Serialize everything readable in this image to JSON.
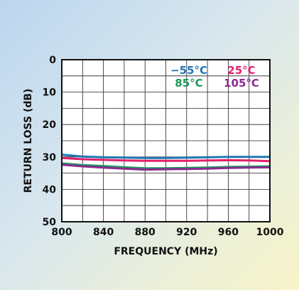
{
  "chart_data": {
    "type": "line",
    "title": "",
    "xlabel": "FREQUENCY (MHz)",
    "ylabel": "RETURN LOSS (dB)",
    "xlim": [
      800,
      1000
    ],
    "ylim": [
      0,
      50
    ],
    "y_inverted": true,
    "grid": true,
    "legend_placement": "top-right",
    "x_ticks": [
      "800",
      "840",
      "880",
      "920",
      "960",
      "1000"
    ],
    "y_ticks": [
      "0",
      "10",
      "20",
      "30",
      "40",
      "50"
    ],
    "x": [
      800,
      820,
      840,
      860,
      880,
      900,
      920,
      940,
      960,
      980,
      1000
    ],
    "series": [
      {
        "name": "−55°C",
        "color": "#1f77b4",
        "values": [
          29.3,
          29.9,
          30.1,
          30.2,
          30.3,
          30.3,
          30.2,
          30.1,
          30.0,
          30.0,
          30.0
        ]
      },
      {
        "name": "25°C",
        "color": "#e0206a",
        "values": [
          30.3,
          30.7,
          30.9,
          31.1,
          31.2,
          31.2,
          31.2,
          31.1,
          31.0,
          31.1,
          31.3
        ]
      },
      {
        "name": "85°C",
        "color": "#1a9a5a",
        "values": [
          32.0,
          32.5,
          32.8,
          33.2,
          33.5,
          33.5,
          33.4,
          33.3,
          33.1,
          33.0,
          32.9
        ]
      },
      {
        "name": "105°C",
        "color": "#8a2a8f",
        "values": [
          32.4,
          32.9,
          33.3,
          33.6,
          33.9,
          33.8,
          33.7,
          33.6,
          33.4,
          33.3,
          33.2
        ]
      }
    ]
  }
}
